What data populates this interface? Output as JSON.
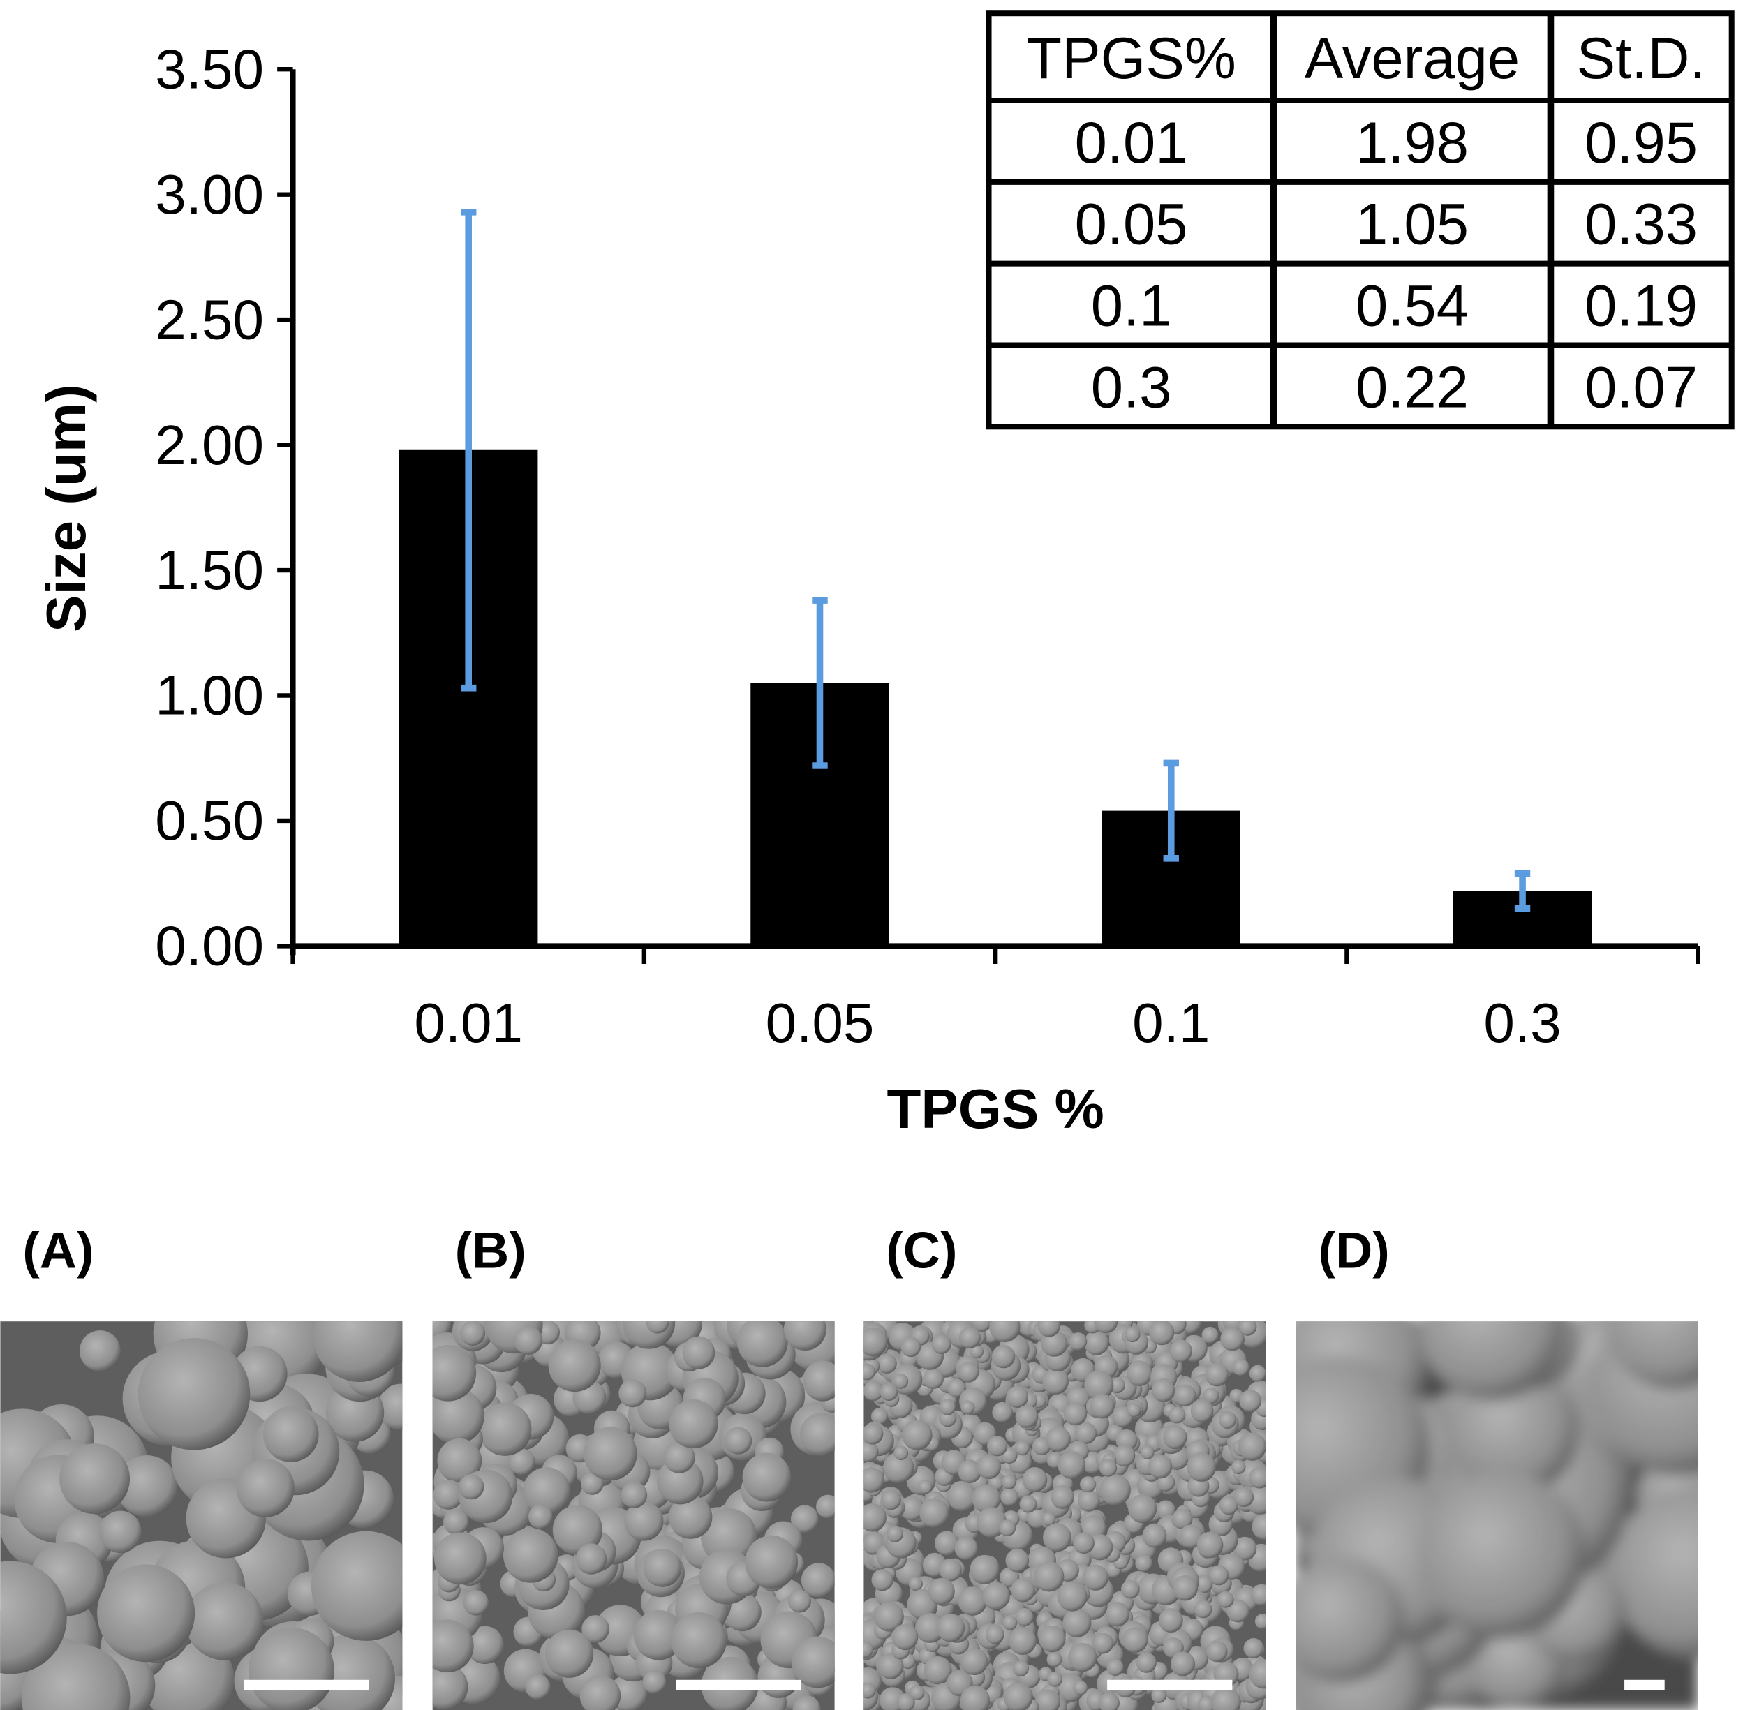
{
  "chart_data": {
    "type": "bar",
    "xlabel": "TPGS %",
    "ylabel": "Size (um)",
    "categories": [
      "0.01",
      "0.05",
      "0.1",
      "0.3"
    ],
    "values": [
      1.98,
      1.05,
      0.54,
      0.22
    ],
    "error": [
      0.95,
      0.33,
      0.19,
      0.07
    ],
    "ylim": [
      0,
      3.5
    ],
    "yticks": [
      "0.00",
      "0.50",
      "1.00",
      "1.50",
      "2.00",
      "2.50",
      "3.00",
      "3.50"
    ],
    "grid": false,
    "bar_color": "#000000",
    "error_color": "#5B9BE0",
    "table": {
      "headers": [
        "TPGS%",
        "Average",
        "St.D."
      ],
      "rows": [
        [
          "0.01",
          "1.98",
          "0.95"
        ],
        [
          "0.05",
          "1.05",
          "0.33"
        ],
        [
          "0.1",
          "0.54",
          "0.19"
        ],
        [
          "0.3",
          "0.22",
          "0.07"
        ]
      ]
    }
  },
  "panels": [
    {
      "label": "(A)"
    },
    {
      "label": "(B)"
    },
    {
      "label": "(C)"
    },
    {
      "label": "(D)"
    }
  ]
}
